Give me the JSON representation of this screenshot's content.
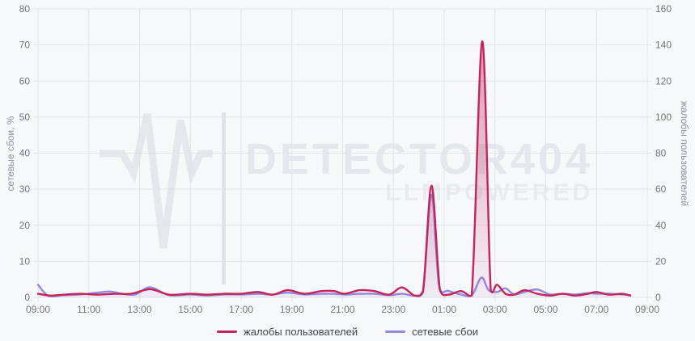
{
  "chart_data": {
    "type": "area",
    "x_ticks": [
      "09:00",
      "11:00",
      "13:00",
      "15:00",
      "17:00",
      "19:00",
      "21:00",
      "23:00",
      "01:00",
      "03:00",
      "05:00",
      "07:00",
      "09:00"
    ],
    "x_start": "09:00",
    "x_range_hours": 24,
    "grid": true,
    "legend_position": "bottom",
    "left_axis": {
      "label": "сетевые сбои, %",
      "min": 0,
      "max": 80,
      "tick_step": 10
    },
    "right_axis": {
      "label": "жалобы пользователей",
      "min": 0,
      "max": 160,
      "tick_step": 20
    },
    "series": [
      {
        "name": "жалобы пользователей",
        "axis": "right",
        "color": "#c2255c",
        "fill_from": "rgba(194,37,92,0.50)",
        "fill_to": "rgba(194,37,92,0.03)",
        "points": [
          [
            "09:00",
            2
          ],
          [
            "09:30",
            1
          ],
          [
            "10:00",
            1.5
          ],
          [
            "10:40",
            2
          ],
          [
            "11:20",
            1.5
          ],
          [
            "12:00",
            2
          ],
          [
            "12:40",
            2
          ],
          [
            "13:25",
            4.5
          ],
          [
            "14:10",
            1.5
          ],
          [
            "15:00",
            2
          ],
          [
            "15:40",
            1.5
          ],
          [
            "16:20",
            2
          ],
          [
            "17:00",
            2
          ],
          [
            "17:40",
            3
          ],
          [
            "18:15",
            1.5
          ],
          [
            "18:50",
            4
          ],
          [
            "19:30",
            2
          ],
          [
            "20:10",
            3.5
          ],
          [
            "20:40",
            3.5
          ],
          [
            "21:05",
            2
          ],
          [
            "21:40",
            4
          ],
          [
            "22:15",
            3.5
          ],
          [
            "22:50",
            1.5
          ],
          [
            "23:20",
            5.5
          ],
          [
            "23:50",
            1
          ],
          [
            "00:10",
            3
          ],
          [
            "00:30",
            62
          ],
          [
            "00:50",
            4
          ],
          [
            "01:10",
            1.5
          ],
          [
            "01:40",
            3.5
          ],
          [
            "02:05",
            1
          ],
          [
            "02:30",
            142
          ],
          [
            "02:50",
            4
          ],
          [
            "03:05",
            7
          ],
          [
            "03:25",
            2
          ],
          [
            "03:45",
            1.5
          ],
          [
            "04:10",
            4
          ],
          [
            "04:40",
            2
          ],
          [
            "05:10",
            1
          ],
          [
            "05:40",
            2
          ],
          [
            "06:10",
            1
          ],
          [
            "06:40",
            2
          ],
          [
            "07:00",
            3
          ],
          [
            "07:30",
            1.5
          ],
          [
            "08:00",
            2
          ],
          [
            "08:20",
            1
          ]
        ]
      },
      {
        "name": "сетевые сбои",
        "axis": "left",
        "color": "#9489de",
        "fill_from": "rgba(148,137,222,0.45)",
        "fill_to": "rgba(148,137,222,0.05)",
        "points": [
          [
            "09:00",
            3.5
          ],
          [
            "09:25",
            0.4
          ],
          [
            "10:00",
            0.6
          ],
          [
            "10:40",
            0.8
          ],
          [
            "11:20",
            1.3
          ],
          [
            "11:50",
            1.6
          ],
          [
            "12:20",
            1
          ],
          [
            "12:50",
            0.8
          ],
          [
            "13:25",
            2.8
          ],
          [
            "14:10",
            0.6
          ],
          [
            "15:00",
            0.8
          ],
          [
            "15:40",
            0.5
          ],
          [
            "16:20",
            0.8
          ],
          [
            "17:00",
            0.8
          ],
          [
            "17:40",
            1
          ],
          [
            "18:15",
            0.8
          ],
          [
            "18:50",
            1.3
          ],
          [
            "19:30",
            0.8
          ],
          [
            "20:10",
            1
          ],
          [
            "20:40",
            1
          ],
          [
            "21:05",
            0.8
          ],
          [
            "21:40",
            1
          ],
          [
            "22:15",
            1
          ],
          [
            "22:50",
            0.6
          ],
          [
            "23:20",
            1
          ],
          [
            "23:50",
            0.5
          ],
          [
            "00:10",
            2
          ],
          [
            "00:30",
            28.5
          ],
          [
            "00:48",
            3
          ],
          [
            "01:10",
            1.8
          ],
          [
            "01:40",
            0.8
          ],
          [
            "02:05",
            0.5
          ],
          [
            "02:28",
            5.5
          ],
          [
            "02:45",
            2
          ],
          [
            "03:05",
            1.5
          ],
          [
            "03:25",
            2.5
          ],
          [
            "03:45",
            0.8
          ],
          [
            "04:10",
            1.5
          ],
          [
            "04:40",
            2.2
          ],
          [
            "05:10",
            0.8
          ],
          [
            "05:40",
            1
          ],
          [
            "06:10",
            0.8
          ],
          [
            "06:40",
            1.2
          ],
          [
            "07:00",
            1
          ],
          [
            "07:30",
            1
          ],
          [
            "08:00",
            0.8
          ],
          [
            "08:20",
            0.6
          ]
        ]
      }
    ],
    "watermark": {
      "brand": "DETECTOR404",
      "subtitle": "LLMPOWERED",
      "icon": "pulse-icon"
    }
  },
  "colors": {
    "background": "#f7f8fa",
    "grid": "#e1e3e8",
    "tick_label": "#70747d",
    "axis_title": "#8d919b",
    "legend_text": "#3f4450",
    "watermark": "#e4e7eb",
    "watermark_sub": "#e9ecef"
  }
}
